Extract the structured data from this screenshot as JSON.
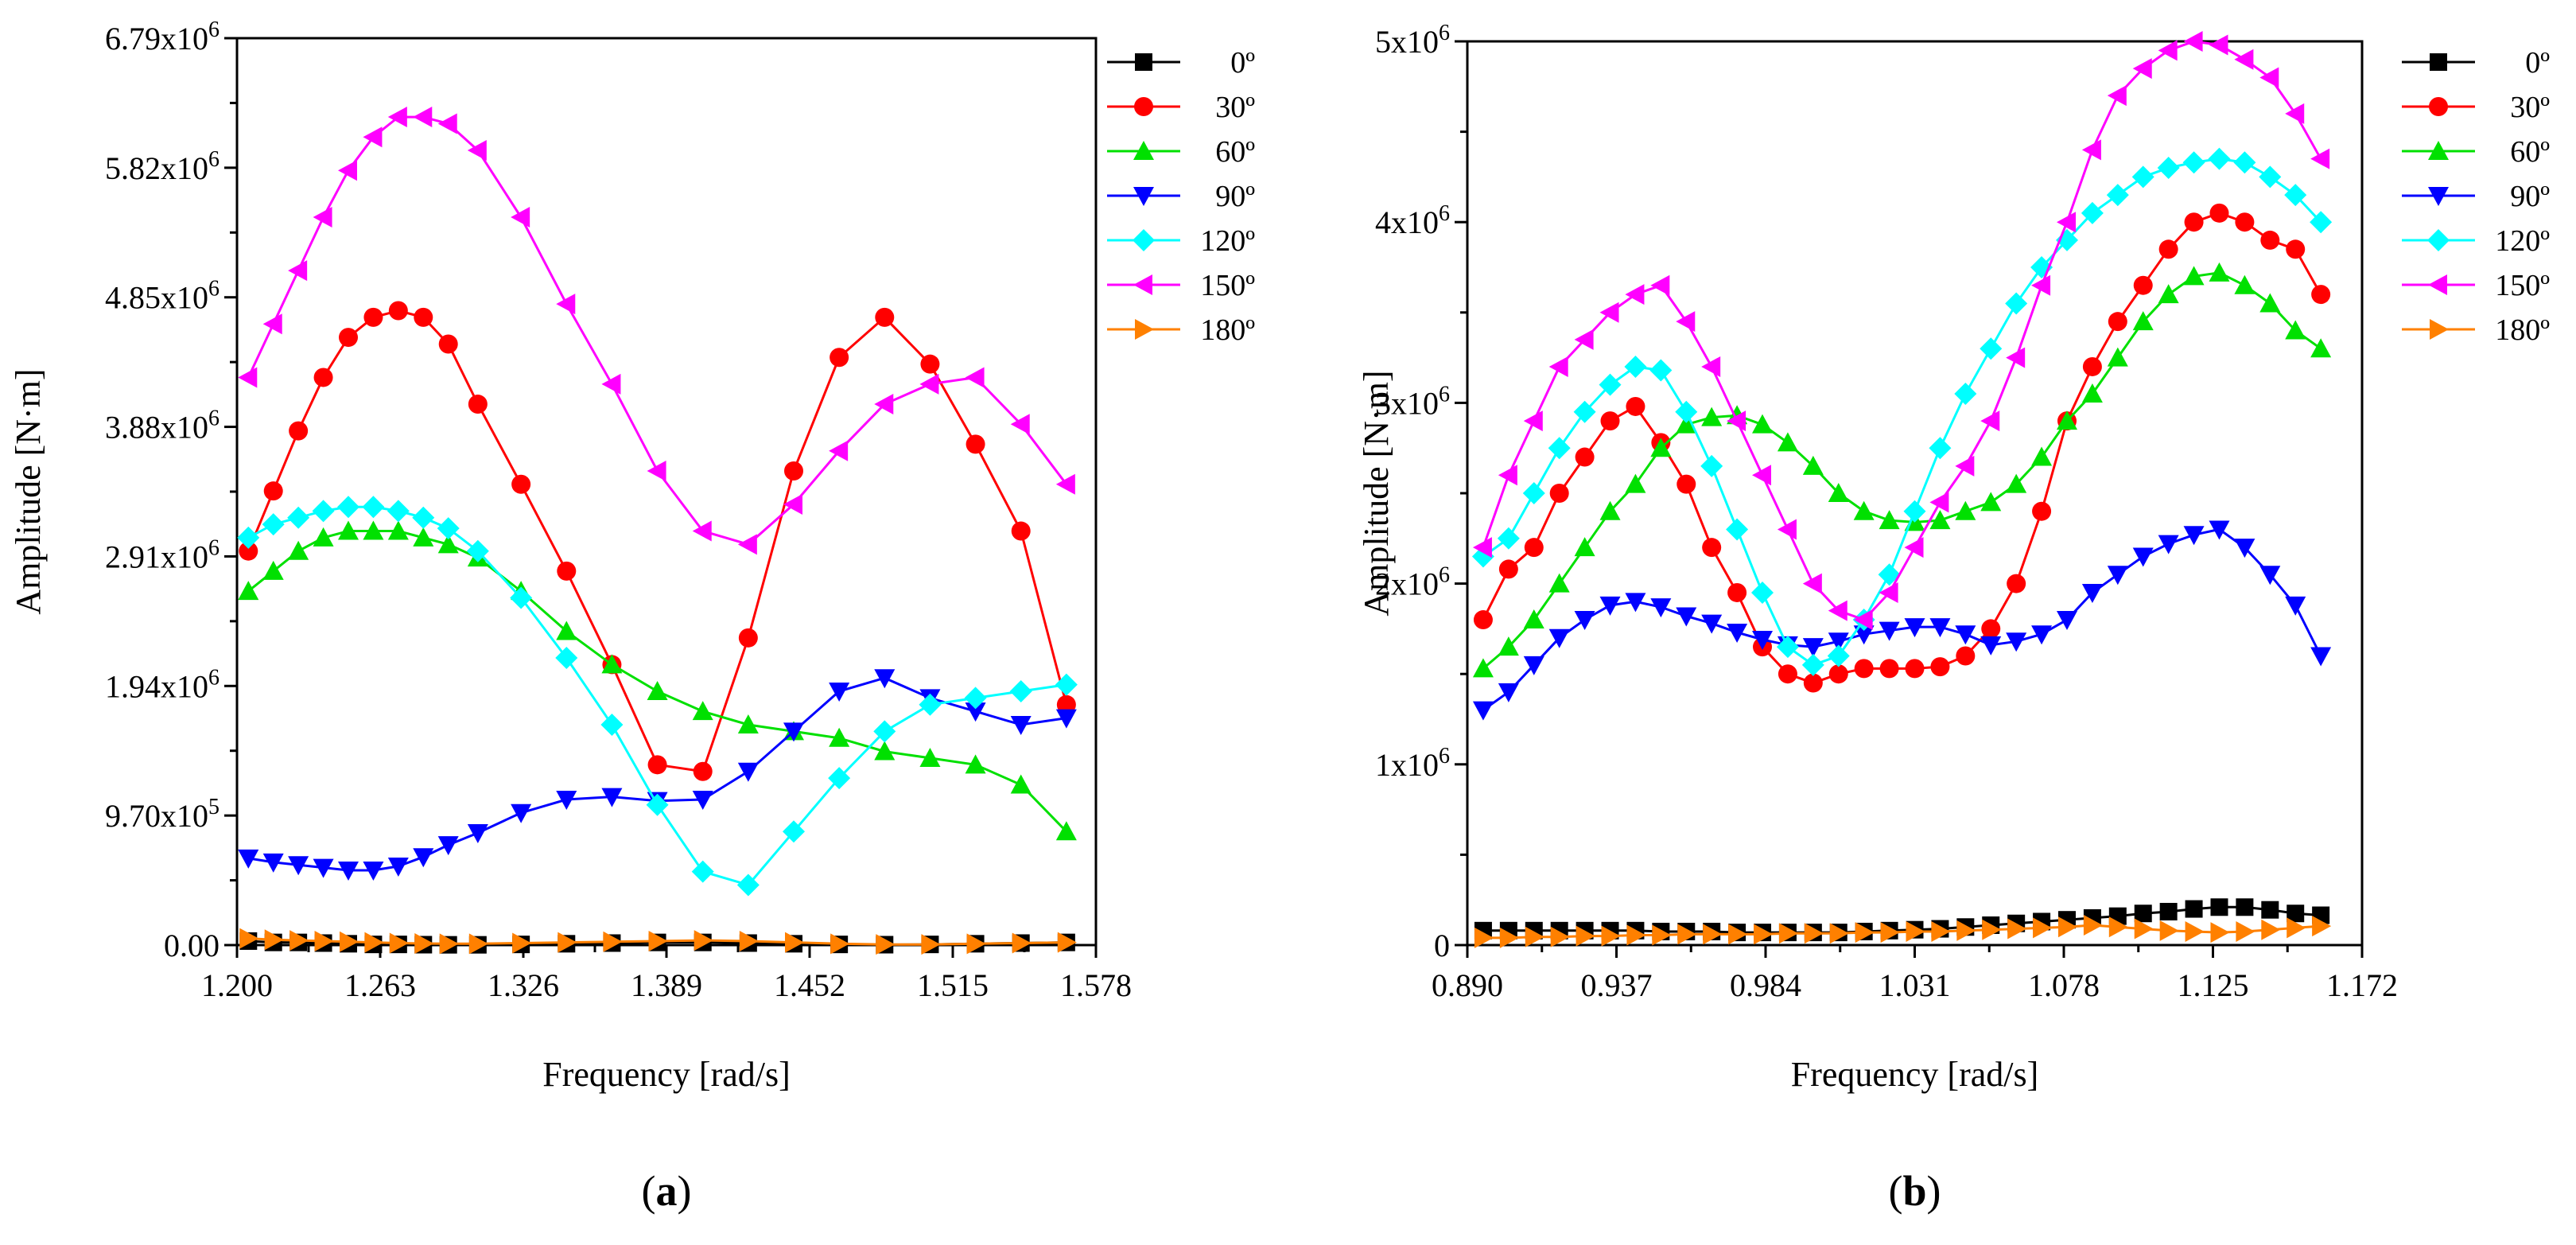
{
  "chart_data": [
    {
      "id": "a",
      "type": "line",
      "panel_label": "(a)",
      "title": "",
      "xlabel": "Frequency [rad/s]",
      "ylabel": "Amplitude [N·m]",
      "xlim": [
        1.2,
        1.578
      ],
      "ylim": [
        0,
        6790000
      ],
      "xticks": [
        {
          "value": 1.2,
          "label": "1.200"
        },
        {
          "value": 1.263,
          "label": "1.263"
        },
        {
          "value": 1.326,
          "label": "1.326"
        },
        {
          "value": 1.389,
          "label": "1.389"
        },
        {
          "value": 1.452,
          "label": "1.452"
        },
        {
          "value": 1.515,
          "label": "1.515"
        },
        {
          "value": 1.578,
          "label": "1.578"
        }
      ],
      "yticks": [
        {
          "value": 0,
          "label": "0.00"
        },
        {
          "value": 970000,
          "label": "9.70x10",
          "exp": "5"
        },
        {
          "value": 1940000,
          "label": "1.94x10",
          "exp": "6"
        },
        {
          "value": 2910000,
          "label": "2.91x10",
          "exp": "6"
        },
        {
          "value": 3880000,
          "label": "3.88x10",
          "exp": "6"
        },
        {
          "value": 4850000,
          "label": "4.85x10",
          "exp": "6"
        },
        {
          "value": 5820000,
          "label": "5.82x10",
          "exp": "6"
        },
        {
          "value": 6790000,
          "label": "6.79x10",
          "exp": "6"
        }
      ],
      "x": [
        1.205,
        1.216,
        1.227,
        1.238,
        1.249,
        1.26,
        1.271,
        1.282,
        1.293,
        1.306,
        1.325,
        1.345,
        1.365,
        1.385,
        1.405,
        1.425,
        1.445,
        1.465,
        1.485,
        1.505,
        1.525,
        1.545,
        1.565
      ],
      "series": [
        {
          "name": "0º",
          "color": "#000000",
          "marker": "square",
          "values": [
            30000,
            20000,
            20000,
            15000,
            10000,
            5000,
            5000,
            3000,
            2000,
            2000,
            5000,
            10000,
            15000,
            20000,
            20000,
            15000,
            10000,
            5000,
            3000,
            5000,
            10000,
            15000,
            20000
          ]
        },
        {
          "name": "30º",
          "color": "#ff0000",
          "marker": "circle",
          "values": [
            2950000,
            3400000,
            3850000,
            4250000,
            4550000,
            4700000,
            4750000,
            4700000,
            4500000,
            4050000,
            3450000,
            2800000,
            2100000,
            1350000,
            1300000,
            2300000,
            3550000,
            4400000,
            4700000,
            4350000,
            3750000,
            3100000,
            1800000
          ]
        },
        {
          "name": "60º",
          "color": "#00e000",
          "marker": "triangle-up",
          "values": [
            2650000,
            2800000,
            2950000,
            3050000,
            3100000,
            3100000,
            3100000,
            3050000,
            3000000,
            2900000,
            2650000,
            2350000,
            2100000,
            1900000,
            1750000,
            1650000,
            1600000,
            1550000,
            1450000,
            1400000,
            1350000,
            1200000,
            850000
          ]
        },
        {
          "name": "90º",
          "color": "#0000ff",
          "marker": "triangle-down",
          "values": [
            650000,
            620000,
            600000,
            580000,
            560000,
            560000,
            590000,
            660000,
            750000,
            840000,
            990000,
            1090000,
            1110000,
            1080000,
            1090000,
            1300000,
            1600000,
            1900000,
            2000000,
            1850000,
            1750000,
            1650000,
            1700000
          ]
        },
        {
          "name": "120º",
          "color": "#00ffff",
          "marker": "diamond",
          "values": [
            3050000,
            3150000,
            3200000,
            3250000,
            3280000,
            3280000,
            3250000,
            3200000,
            3120000,
            2950000,
            2600000,
            2150000,
            1650000,
            1050000,
            550000,
            450000,
            850000,
            1250000,
            1600000,
            1800000,
            1850000,
            1900000,
            1950000
          ]
        },
        {
          "name": "150º",
          "color": "#ff00ff",
          "marker": "triangle-left",
          "values": [
            4250000,
            4650000,
            5050000,
            5450000,
            5800000,
            6050000,
            6200000,
            6200000,
            6150000,
            5950000,
            5450000,
            4800000,
            4200000,
            3550000,
            3100000,
            3000000,
            3300000,
            3700000,
            4050000,
            4200000,
            4250000,
            3900000,
            3450000
          ]
        },
        {
          "name": "180º",
          "color": "#ff8000",
          "marker": "triangle-right",
          "values": [
            50000,
            40000,
            35000,
            30000,
            25000,
            20000,
            15000,
            12000,
            10000,
            10000,
            15000,
            20000,
            25000,
            30000,
            35000,
            30000,
            20000,
            10000,
            5000,
            5000,
            10000,
            15000,
            20000
          ]
        }
      ],
      "legend": "right"
    },
    {
      "id": "b",
      "type": "line",
      "panel_label": "(b)",
      "title": "",
      "xlabel": "Frequency [rad/s]",
      "ylabel": "Amplitude [N·m]",
      "xlim": [
        0.89,
        1.172
      ],
      "ylim": [
        0,
        5000000
      ],
      "xticks": [
        {
          "value": 0.89,
          "label": "0.890"
        },
        {
          "value": 0.937,
          "label": "0.937"
        },
        {
          "value": 0.984,
          "label": "0.984"
        },
        {
          "value": 1.031,
          "label": "1.031"
        },
        {
          "value": 1.078,
          "label": "1.078"
        },
        {
          "value": 1.125,
          "label": "1.125"
        },
        {
          "value": 1.172,
          "label": "1.172"
        }
      ],
      "yticks": [
        {
          "value": 0,
          "label": "0"
        },
        {
          "value": 1000000,
          "label": "1x10",
          "exp": "6"
        },
        {
          "value": 2000000,
          "label": "2x10",
          "exp": "6"
        },
        {
          "value": 3000000,
          "label": "3x10",
          "exp": "6"
        },
        {
          "value": 4000000,
          "label": "4x10",
          "exp": "6"
        },
        {
          "value": 5000000,
          "label": "5x10",
          "exp": "6"
        }
      ],
      "x": [
        0.895,
        0.903,
        0.911,
        0.919,
        0.927,
        0.935,
        0.943,
        0.951,
        0.959,
        0.967,
        0.975,
        0.983,
        0.991,
        0.999,
        1.007,
        1.015,
        1.023,
        1.031,
        1.039,
        1.047,
        1.055,
        1.063,
        1.071,
        1.079,
        1.087,
        1.095,
        1.103,
        1.111,
        1.119,
        1.127,
        1.135,
        1.143,
        1.151,
        1.159
      ],
      "series": [
        {
          "name": "0º",
          "color": "#000000",
          "marker": "square",
          "values": [
            80000,
            80000,
            80000,
            80000,
            80000,
            80000,
            80000,
            75000,
            75000,
            75000,
            70000,
            70000,
            70000,
            70000,
            70000,
            75000,
            80000,
            85000,
            90000,
            100000,
            110000,
            120000,
            130000,
            140000,
            150000,
            160000,
            175000,
            185000,
            200000,
            210000,
            210000,
            195000,
            175000,
            165000
          ]
        },
        {
          "name": "30º",
          "color": "#ff0000",
          "marker": "circle",
          "values": [
            1800000,
            2080000,
            2200000,
            2500000,
            2700000,
            2900000,
            2980000,
            2780000,
            2550000,
            2200000,
            1950000,
            1650000,
            1500000,
            1450000,
            1500000,
            1530000,
            1530000,
            1530000,
            1540000,
            1600000,
            1750000,
            2000000,
            2400000,
            2900000,
            3200000,
            3450000,
            3650000,
            3850000,
            4000000,
            4050000,
            4000000,
            3900000,
            3850000,
            3600000
          ]
        },
        {
          "name": "60º",
          "color": "#00e000",
          "marker": "triangle-up",
          "values": [
            1530000,
            1650000,
            1800000,
            2000000,
            2200000,
            2400000,
            2550000,
            2750000,
            2880000,
            2920000,
            2930000,
            2880000,
            2780000,
            2650000,
            2500000,
            2400000,
            2350000,
            2340000,
            2350000,
            2400000,
            2450000,
            2550000,
            2700000,
            2900000,
            3050000,
            3250000,
            3450000,
            3600000,
            3700000,
            3720000,
            3650000,
            3550000,
            3400000,
            3300000
          ]
        },
        {
          "name": "90º",
          "color": "#0000ff",
          "marker": "triangle-down",
          "values": [
            1300000,
            1400000,
            1550000,
            1700000,
            1800000,
            1880000,
            1900000,
            1870000,
            1820000,
            1780000,
            1730000,
            1690000,
            1660000,
            1650000,
            1680000,
            1720000,
            1740000,
            1760000,
            1760000,
            1720000,
            1660000,
            1680000,
            1720000,
            1800000,
            1950000,
            2050000,
            2150000,
            2220000,
            2270000,
            2300000,
            2200000,
            2050000,
            1880000,
            1600000
          ]
        },
        {
          "name": "120º",
          "color": "#00ffff",
          "marker": "diamond",
          "values": [
            2150000,
            2250000,
            2500000,
            2750000,
            2950000,
            3100000,
            3200000,
            3180000,
            2950000,
            2650000,
            2300000,
            1950000,
            1650000,
            1550000,
            1600000,
            1800000,
            2050000,
            2400000,
            2750000,
            3050000,
            3300000,
            3550000,
            3750000,
            3900000,
            4050000,
            4150000,
            4250000,
            4300000,
            4330000,
            4350000,
            4330000,
            4250000,
            4150000,
            4000000
          ]
        },
        {
          "name": "150º",
          "color": "#ff00ff",
          "marker": "triangle-left",
          "values": [
            2200000,
            2600000,
            2900000,
            3200000,
            3350000,
            3500000,
            3600000,
            3650000,
            3450000,
            3200000,
            2900000,
            2600000,
            2300000,
            2000000,
            1850000,
            1800000,
            1950000,
            2200000,
            2450000,
            2650000,
            2900000,
            3250000,
            3650000,
            4000000,
            4400000,
            4700000,
            4850000,
            4950000,
            5000000,
            4980000,
            4900000,
            4800000,
            4600000,
            4350000
          ]
        },
        {
          "name": "180º",
          "color": "#ff8000",
          "marker": "triangle-right",
          "values": [
            40000,
            40000,
            45000,
            45000,
            50000,
            50000,
            55000,
            55000,
            60000,
            60000,
            60000,
            60000,
            65000,
            65000,
            65000,
            70000,
            70000,
            75000,
            75000,
            80000,
            85000,
            90000,
            95000,
            100000,
            110000,
            100000,
            90000,
            80000,
            75000,
            70000,
            75000,
            85000,
            95000,
            105000
          ]
        }
      ],
      "legend": "right"
    }
  ]
}
